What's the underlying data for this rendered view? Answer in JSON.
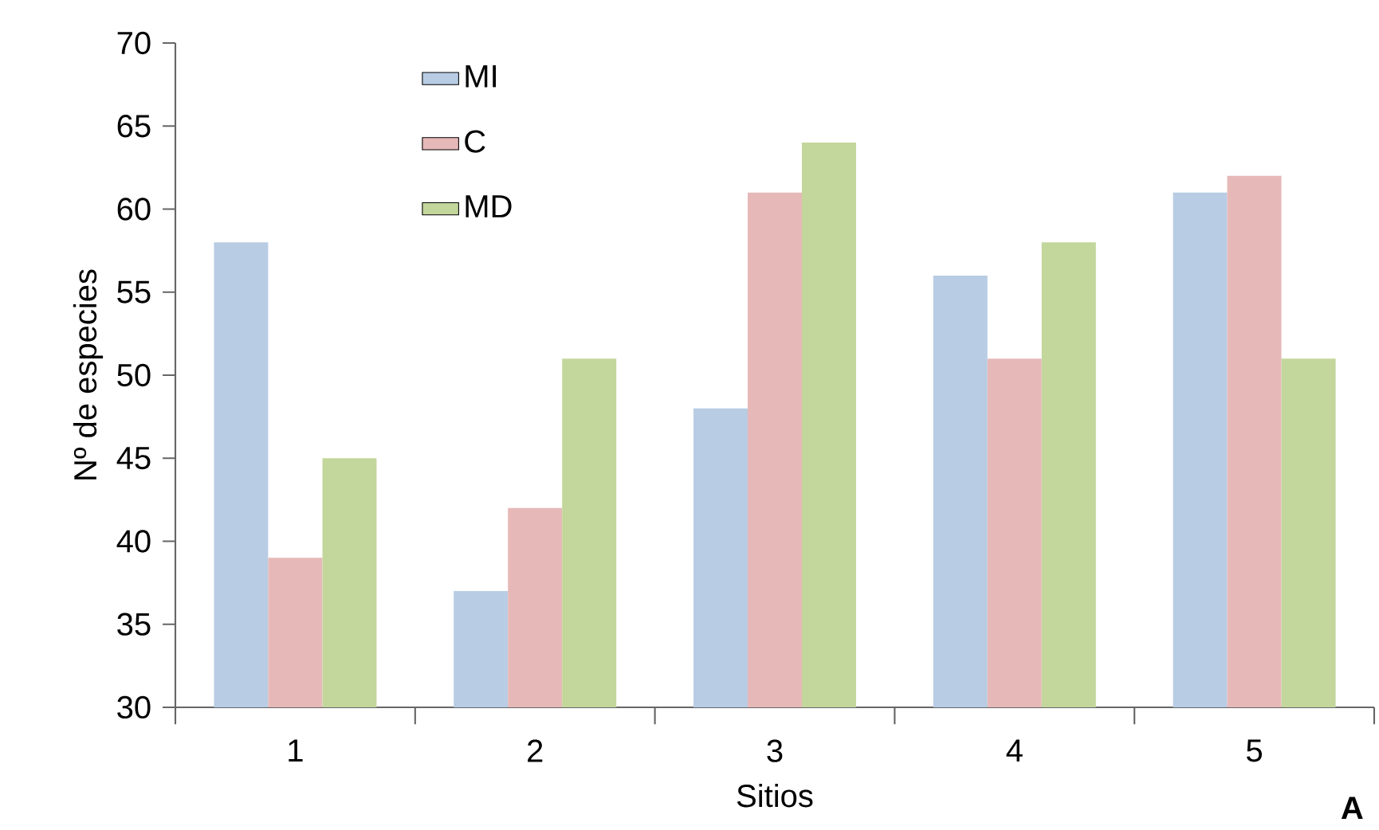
{
  "chart_data": {
    "type": "bar",
    "xlabel": "Sitios",
    "ylabel": "Nº de especies",
    "categories": [
      "1",
      "2",
      "3",
      "4",
      "5"
    ],
    "series": [
      {
        "name": "MI",
        "color": "#b8cce4",
        "values": [
          58,
          37,
          48,
          56,
          61
        ]
      },
      {
        "name": "C",
        "color": "#e6b9b8",
        "values": [
          39,
          42,
          61,
          51,
          62
        ]
      },
      {
        "name": "MD",
        "color": "#c3d69b",
        "values": [
          45,
          51,
          64,
          58,
          51
        ]
      }
    ],
    "ylim": [
      30,
      70
    ],
    "yticks": [
      30,
      35,
      40,
      45,
      50,
      55,
      60,
      65,
      70
    ],
    "legend": "top left",
    "annotations": [
      "A"
    ]
  }
}
